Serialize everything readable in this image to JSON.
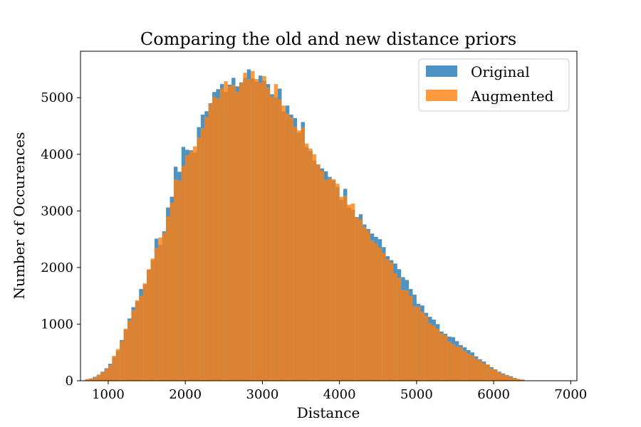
{
  "chart_data": {
    "type": "bar",
    "title": "Comparing the old and new distance priors",
    "xlabel": "Distance",
    "ylabel": "Number of Occurences",
    "xlim": [
      640,
      7080
    ],
    "ylim": [
      0,
      5820
    ],
    "xticks": [
      1000,
      2000,
      3000,
      4000,
      5000,
      6000,
      7000
    ],
    "yticks": [
      0,
      1000,
      2000,
      3000,
      4000,
      5000
    ],
    "grid": false,
    "legend_position": "top-right",
    "bin_width": 50,
    "series": [
      {
        "name": "Original",
        "color": "#1f77b4",
        "opacity": 0.8,
        "bins": [
          {
            "x": 700,
            "y": 20
          },
          {
            "x": 750,
            "y": 40
          },
          {
            "x": 800,
            "y": 70
          },
          {
            "x": 850,
            "y": 100
          },
          {
            "x": 900,
            "y": 160
          },
          {
            "x": 950,
            "y": 220
          },
          {
            "x": 1000,
            "y": 300
          },
          {
            "x": 1050,
            "y": 420
          },
          {
            "x": 1100,
            "y": 530
          },
          {
            "x": 1150,
            "y": 720
          },
          {
            "x": 1200,
            "y": 900
          },
          {
            "x": 1250,
            "y": 1100
          },
          {
            "x": 1300,
            "y": 1300
          },
          {
            "x": 1350,
            "y": 1400
          },
          {
            "x": 1400,
            "y": 1620
          },
          {
            "x": 1450,
            "y": 1700
          },
          {
            "x": 1500,
            "y": 1960
          },
          {
            "x": 1550,
            "y": 2130
          },
          {
            "x": 1600,
            "y": 2510
          },
          {
            "x": 1650,
            "y": 2400
          },
          {
            "x": 1700,
            "y": 2640
          },
          {
            "x": 1750,
            "y": 3060
          },
          {
            "x": 1800,
            "y": 3250
          },
          {
            "x": 1850,
            "y": 3780
          },
          {
            "x": 1900,
            "y": 3690
          },
          {
            "x": 1950,
            "y": 4130
          },
          {
            "x": 2000,
            "y": 4080
          },
          {
            "x": 2050,
            "y": 4070
          },
          {
            "x": 2100,
            "y": 4030
          },
          {
            "x": 2150,
            "y": 4480
          },
          {
            "x": 2200,
            "y": 4700
          },
          {
            "x": 2250,
            "y": 4760
          },
          {
            "x": 2300,
            "y": 4900
          },
          {
            "x": 2350,
            "y": 5100
          },
          {
            "x": 2400,
            "y": 5150
          },
          {
            "x": 2450,
            "y": 5240
          },
          {
            "x": 2500,
            "y": 5100
          },
          {
            "x": 2550,
            "y": 5230
          },
          {
            "x": 2600,
            "y": 5350
          },
          {
            "x": 2650,
            "y": 5200
          },
          {
            "x": 2700,
            "y": 5270
          },
          {
            "x": 2750,
            "y": 5350
          },
          {
            "x": 2800,
            "y": 5500
          },
          {
            "x": 2850,
            "y": 5340
          },
          {
            "x": 2900,
            "y": 5280
          },
          {
            "x": 2950,
            "y": 5390
          },
          {
            "x": 3000,
            "y": 5300
          },
          {
            "x": 3050,
            "y": 5240
          },
          {
            "x": 3100,
            "y": 5060
          },
          {
            "x": 3150,
            "y": 5010
          },
          {
            "x": 3200,
            "y": 5160
          },
          {
            "x": 3250,
            "y": 4760
          },
          {
            "x": 3300,
            "y": 4860
          },
          {
            "x": 3350,
            "y": 4700
          },
          {
            "x": 3400,
            "y": 4640
          },
          {
            "x": 3450,
            "y": 4380
          },
          {
            "x": 3500,
            "y": 4570
          },
          {
            "x": 3550,
            "y": 4130
          },
          {
            "x": 3600,
            "y": 4060
          },
          {
            "x": 3650,
            "y": 3890
          },
          {
            "x": 3700,
            "y": 3820
          },
          {
            "x": 3750,
            "y": 3750
          },
          {
            "x": 3800,
            "y": 3700
          },
          {
            "x": 3850,
            "y": 3600
          },
          {
            "x": 3900,
            "y": 3540
          },
          {
            "x": 3950,
            "y": 3420
          },
          {
            "x": 4000,
            "y": 3200
          },
          {
            "x": 4050,
            "y": 3390
          },
          {
            "x": 4100,
            "y": 3060
          },
          {
            "x": 4150,
            "y": 3020
          },
          {
            "x": 4200,
            "y": 2890
          },
          {
            "x": 4250,
            "y": 2940
          },
          {
            "x": 4300,
            "y": 2760
          },
          {
            "x": 4350,
            "y": 2680
          },
          {
            "x": 4400,
            "y": 2600
          },
          {
            "x": 4450,
            "y": 2540
          },
          {
            "x": 4500,
            "y": 2500
          },
          {
            "x": 4550,
            "y": 2360
          },
          {
            "x": 4600,
            "y": 2200
          },
          {
            "x": 4650,
            "y": 2130
          },
          {
            "x": 4700,
            "y": 2070
          },
          {
            "x": 4750,
            "y": 1970
          },
          {
            "x": 4800,
            "y": 1830
          },
          {
            "x": 4850,
            "y": 1780
          },
          {
            "x": 4900,
            "y": 1620
          },
          {
            "x": 4950,
            "y": 1520
          },
          {
            "x": 5000,
            "y": 1360
          },
          {
            "x": 5050,
            "y": 1330
          },
          {
            "x": 5100,
            "y": 1200
          },
          {
            "x": 5150,
            "y": 1130
          },
          {
            "x": 5200,
            "y": 1080
          },
          {
            "x": 5250,
            "y": 1000
          },
          {
            "x": 5300,
            "y": 870
          },
          {
            "x": 5350,
            "y": 830
          },
          {
            "x": 5400,
            "y": 780
          },
          {
            "x": 5450,
            "y": 770
          },
          {
            "x": 5500,
            "y": 700
          },
          {
            "x": 5550,
            "y": 630
          },
          {
            "x": 5600,
            "y": 590
          },
          {
            "x": 5650,
            "y": 540
          },
          {
            "x": 5700,
            "y": 500
          },
          {
            "x": 5750,
            "y": 430
          },
          {
            "x": 5800,
            "y": 380
          },
          {
            "x": 5850,
            "y": 340
          },
          {
            "x": 5900,
            "y": 280
          },
          {
            "x": 5950,
            "y": 240
          },
          {
            "x": 6000,
            "y": 200
          },
          {
            "x": 6050,
            "y": 160
          },
          {
            "x": 6100,
            "y": 130
          },
          {
            "x": 6150,
            "y": 100
          },
          {
            "x": 6200,
            "y": 80
          },
          {
            "x": 6250,
            "y": 50
          },
          {
            "x": 6300,
            "y": 30
          },
          {
            "x": 6350,
            "y": 20
          }
        ]
      },
      {
        "name": "Augmented",
        "color": "#ff7f0e",
        "opacity": 0.8,
        "bins": [
          {
            "x": 700,
            "y": 30
          },
          {
            "x": 750,
            "y": 40
          },
          {
            "x": 800,
            "y": 60
          },
          {
            "x": 850,
            "y": 110
          },
          {
            "x": 900,
            "y": 150
          },
          {
            "x": 950,
            "y": 210
          },
          {
            "x": 1000,
            "y": 280
          },
          {
            "x": 1050,
            "y": 440
          },
          {
            "x": 1100,
            "y": 560
          },
          {
            "x": 1150,
            "y": 700
          },
          {
            "x": 1200,
            "y": 920
          },
          {
            "x": 1250,
            "y": 1070
          },
          {
            "x": 1300,
            "y": 1250
          },
          {
            "x": 1350,
            "y": 1420
          },
          {
            "x": 1400,
            "y": 1500
          },
          {
            "x": 1450,
            "y": 1720
          },
          {
            "x": 1500,
            "y": 1970
          },
          {
            "x": 1550,
            "y": 2160
          },
          {
            "x": 1600,
            "y": 2350
          },
          {
            "x": 1650,
            "y": 2530
          },
          {
            "x": 1700,
            "y": 2620
          },
          {
            "x": 1750,
            "y": 2900
          },
          {
            "x": 1800,
            "y": 3150
          },
          {
            "x": 1850,
            "y": 3560
          },
          {
            "x": 1900,
            "y": 3540
          },
          {
            "x": 1950,
            "y": 3800
          },
          {
            "x": 2000,
            "y": 3990
          },
          {
            "x": 2050,
            "y": 4050
          },
          {
            "x": 2100,
            "y": 4140
          },
          {
            "x": 2150,
            "y": 4300
          },
          {
            "x": 2200,
            "y": 4460
          },
          {
            "x": 2250,
            "y": 4660
          },
          {
            "x": 2300,
            "y": 4890
          },
          {
            "x": 2350,
            "y": 5020
          },
          {
            "x": 2400,
            "y": 4990
          },
          {
            "x": 2450,
            "y": 5170
          },
          {
            "x": 2500,
            "y": 5290
          },
          {
            "x": 2550,
            "y": 5210
          },
          {
            "x": 2600,
            "y": 5230
          },
          {
            "x": 2650,
            "y": 5110
          },
          {
            "x": 2700,
            "y": 5260
          },
          {
            "x": 2750,
            "y": 5440
          },
          {
            "x": 2800,
            "y": 5330
          },
          {
            "x": 2850,
            "y": 5470
          },
          {
            "x": 2900,
            "y": 5330
          },
          {
            "x": 2950,
            "y": 5270
          },
          {
            "x": 3000,
            "y": 5380
          },
          {
            "x": 3050,
            "y": 5180
          },
          {
            "x": 3100,
            "y": 5020
          },
          {
            "x": 3150,
            "y": 5240
          },
          {
            "x": 3200,
            "y": 4970
          },
          {
            "x": 3250,
            "y": 4860
          },
          {
            "x": 3300,
            "y": 4720
          },
          {
            "x": 3350,
            "y": 4650
          },
          {
            "x": 3400,
            "y": 4490
          },
          {
            "x": 3450,
            "y": 4420
          },
          {
            "x": 3500,
            "y": 4480
          },
          {
            "x": 3550,
            "y": 4190
          },
          {
            "x": 3600,
            "y": 4100
          },
          {
            "x": 3650,
            "y": 4000
          },
          {
            "x": 3700,
            "y": 3820
          },
          {
            "x": 3750,
            "y": 3710
          },
          {
            "x": 3800,
            "y": 3550
          },
          {
            "x": 3850,
            "y": 3580
          },
          {
            "x": 3900,
            "y": 3560
          },
          {
            "x": 3950,
            "y": 3480
          },
          {
            "x": 4000,
            "y": 3250
          },
          {
            "x": 4050,
            "y": 3270
          },
          {
            "x": 4100,
            "y": 3110
          },
          {
            "x": 4150,
            "y": 3130
          },
          {
            "x": 4200,
            "y": 2880
          },
          {
            "x": 4250,
            "y": 2850
          },
          {
            "x": 4300,
            "y": 2720
          },
          {
            "x": 4350,
            "y": 2650
          },
          {
            "x": 4400,
            "y": 2480
          },
          {
            "x": 4450,
            "y": 2430
          },
          {
            "x": 4500,
            "y": 2350
          },
          {
            "x": 4550,
            "y": 2260
          },
          {
            "x": 4600,
            "y": 2150
          },
          {
            "x": 4650,
            "y": 2090
          },
          {
            "x": 4700,
            "y": 1900
          },
          {
            "x": 4750,
            "y": 1820
          },
          {
            "x": 4800,
            "y": 1610
          },
          {
            "x": 4850,
            "y": 1600
          },
          {
            "x": 4900,
            "y": 1500
          },
          {
            "x": 4950,
            "y": 1320
          },
          {
            "x": 5000,
            "y": 1310
          },
          {
            "x": 5050,
            "y": 1220
          },
          {
            "x": 5100,
            "y": 1150
          },
          {
            "x": 5150,
            "y": 1020
          },
          {
            "x": 5200,
            "y": 980
          },
          {
            "x": 5250,
            "y": 920
          },
          {
            "x": 5300,
            "y": 840
          },
          {
            "x": 5350,
            "y": 810
          },
          {
            "x": 5400,
            "y": 700
          },
          {
            "x": 5450,
            "y": 650
          },
          {
            "x": 5500,
            "y": 610
          },
          {
            "x": 5550,
            "y": 590
          },
          {
            "x": 5600,
            "y": 530
          },
          {
            "x": 5650,
            "y": 480
          },
          {
            "x": 5700,
            "y": 450
          },
          {
            "x": 5750,
            "y": 400
          },
          {
            "x": 5800,
            "y": 360
          },
          {
            "x": 5850,
            "y": 310
          },
          {
            "x": 5900,
            "y": 290
          },
          {
            "x": 5950,
            "y": 220
          },
          {
            "x": 6000,
            "y": 190
          },
          {
            "x": 6050,
            "y": 150
          },
          {
            "x": 6100,
            "y": 120
          },
          {
            "x": 6150,
            "y": 100
          },
          {
            "x": 6200,
            "y": 70
          },
          {
            "x": 6250,
            "y": 50
          },
          {
            "x": 6300,
            "y": 30
          },
          {
            "x": 6350,
            "y": 20
          }
        ]
      }
    ]
  }
}
